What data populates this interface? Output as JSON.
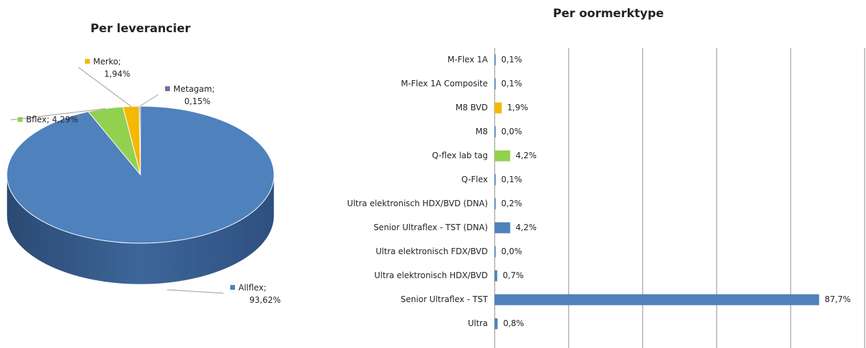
{
  "chart_data": [
    {
      "type": "pie",
      "title": "Per leverancier",
      "categories": [
        "Allflex",
        "Bflex",
        "Merko",
        "Metagam"
      ],
      "values": [
        93.62,
        4.29,
        1.94,
        0.15
      ],
      "value_labels": [
        "Allflex; 93,62%",
        "Bflex; 4,29%",
        "Merko; 1,94%",
        "Metagam; 0,15%"
      ],
      "colors": [
        "#4f81bd",
        "#92d050",
        "#f5b800",
        "#8064a2"
      ]
    },
    {
      "type": "barh",
      "title": "Per oormerktype",
      "categories": [
        "M-Flex 1A",
        "M-Flex 1A Composite",
        "M8 BVD",
        "M8",
        "Q-flex lab tag",
        "Q-Flex",
        "Ultra elektronisch HDX/BVD (DNA)",
        "Senior Ultraflex - TST (DNA)",
        "Ultra elektronisch FDX/BVD",
        "Ultra elektronisch HDX/BVD",
        "Senior Ultraflex - TST",
        "Ultra"
      ],
      "values": [
        0.1,
        0.1,
        1.9,
        0.0,
        4.2,
        0.1,
        0.2,
        4.2,
        0.0,
        0.7,
        87.7,
        0.8
      ],
      "value_labels": [
        "0,1%",
        "0,1%",
        "1,9%",
        "0,0%",
        "4,2%",
        "0,1%",
        "0,2%",
        "4,2%",
        "0,0%",
        "0,7%",
        "87,7%",
        "0,8%"
      ],
      "colors": [
        "#4f81bd",
        "#4f81bd",
        "#f5b800",
        "#4f81bd",
        "#92d050",
        "#4f81bd",
        "#4f81bd",
        "#4f81bd",
        "#4f81bd",
        "#4f81bd",
        "#4f81bd",
        "#4f81bd"
      ],
      "xlim": [
        0,
        100
      ],
      "xticks": [
        0,
        20,
        40,
        60,
        80,
        100
      ],
      "grid": true
    }
  ]
}
